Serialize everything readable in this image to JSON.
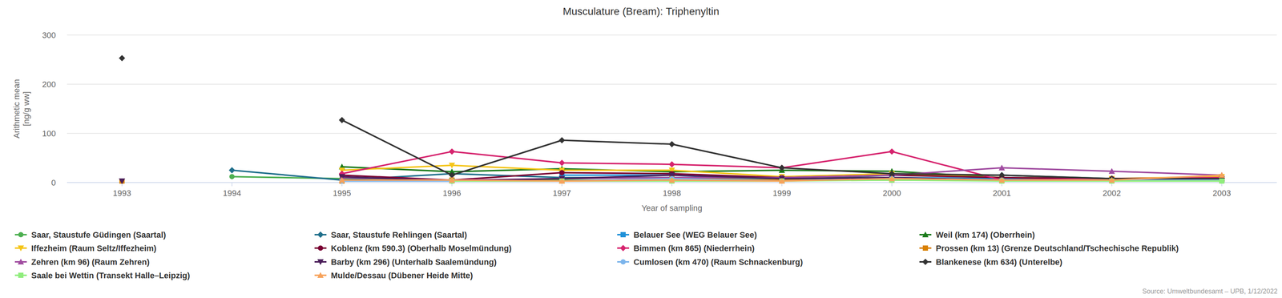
{
  "chart_data": {
    "type": "line",
    "title": "Musculature (Bream): Triphenyltin",
    "x_label": "Year of sampling",
    "y_label": [
      "Arithmetic mean",
      "[ng/g ww]"
    ],
    "source": "Source: Umweltbundesamt – UPB, 1/12/2022",
    "categories": [
      "1993",
      "1994",
      "1995",
      "1996",
      "1997",
      "1998",
      "1999",
      "2000",
      "2001",
      "2002",
      "2003"
    ],
    "ylim": [
      0,
      300
    ],
    "yticks": [
      0,
      100,
      200,
      300
    ],
    "grid": true,
    "legend": "bottom",
    "series": [
      {
        "name": "Saar, Staustufe Güdingen (Saartal)",
        "color": "#4caf50",
        "marker": "circle",
        "values": [
          null,
          12,
          8,
          5,
          5,
          5,
          5,
          8,
          5,
          5,
          5
        ]
      },
      {
        "name": "Saar, Staustufe Rehlingen (Saartal)",
        "color": "#1f6f8b",
        "marker": "diamond",
        "values": [
          null,
          25,
          5,
          18,
          10,
          10,
          5,
          15,
          15,
          8,
          8
        ]
      },
      {
        "name": "Belauer See (WEG Belauer See)",
        "color": "#1e90d8",
        "marker": "square",
        "values": [
          null,
          null,
          null,
          null,
          15,
          15,
          5,
          10,
          8,
          5,
          5
        ]
      },
      {
        "name": "Weil (km 174) (Oberrhein)",
        "color": "#1a7a1a",
        "marker": "triangle",
        "values": [
          null,
          null,
          32,
          22,
          28,
          22,
          25,
          23,
          10,
          8,
          8
        ]
      },
      {
        "name": "Iffezheim (Raum Seltz/Iffezheim)",
        "color": "#f5c518",
        "marker": "triangle-down",
        "values": [
          null,
          null,
          25,
          35,
          25,
          25,
          12,
          18,
          10,
          8,
          12
        ]
      },
      {
        "name": "Koblenz (km 590.3) (Oberhalb Moselmündung)",
        "color": "#7a0033",
        "marker": "circle",
        "values": [
          null,
          null,
          15,
          5,
          20,
          18,
          10,
          15,
          10,
          8,
          8
        ]
      },
      {
        "name": "Bimmen (km 865) (Niederrhein)",
        "color": "#d6246e",
        "marker": "diamond",
        "values": [
          null,
          null,
          18,
          63,
          40,
          37,
          30,
          63,
          5,
          8,
          10
        ]
      },
      {
        "name": "Prossen (km 13) (Grenze Deutschland/Tschechische Republik)",
        "color": "#d98000",
        "marker": "square",
        "values": [
          3,
          null,
          3,
          5,
          3,
          8,
          5,
          5,
          5,
          5,
          5
        ]
      },
      {
        "name": "Zehren (km 96) (Raum Zehren)",
        "color": "#a04ca0",
        "marker": "triangle",
        "values": [
          null,
          null,
          10,
          5,
          8,
          10,
          10,
          15,
          30,
          23,
          15
        ]
      },
      {
        "name": "Barby (km 296) (Unterhalb Saalemündung)",
        "color": "#4b1f5a",
        "marker": "triangle-down",
        "values": [
          3,
          null,
          12,
          3,
          8,
          15,
          8,
          10,
          5,
          5,
          8
        ]
      },
      {
        "name": "Cumlosen (km 470) (Raum Schnackenburg)",
        "color": "#7cb5ec",
        "marker": "circle",
        "values": [
          null,
          null,
          3,
          3,
          3,
          8,
          3,
          8,
          5,
          5,
          5
        ]
      },
      {
        "name": "Blankenese (km 634) (Unterelbe)",
        "color": "#333333",
        "marker": "diamond",
        "values": [
          253,
          null,
          127,
          15,
          86,
          78,
          30,
          18,
          15,
          8,
          8
        ]
      },
      {
        "name": "Saale bei Wettin (Transekt Halle–Leipzig)",
        "color": "#90ed7d",
        "marker": "square",
        "values": [
          null,
          null,
          null,
          3,
          3,
          3,
          3,
          5,
          3,
          3,
          3
        ]
      },
      {
        "name": "Mulde/Dessau (Dübener Heide Mitte)",
        "color": "#f7a35c",
        "marker": "triangle",
        "values": [
          null,
          null,
          5,
          5,
          3,
          5,
          3,
          8,
          5,
          5,
          15
        ]
      }
    ]
  }
}
